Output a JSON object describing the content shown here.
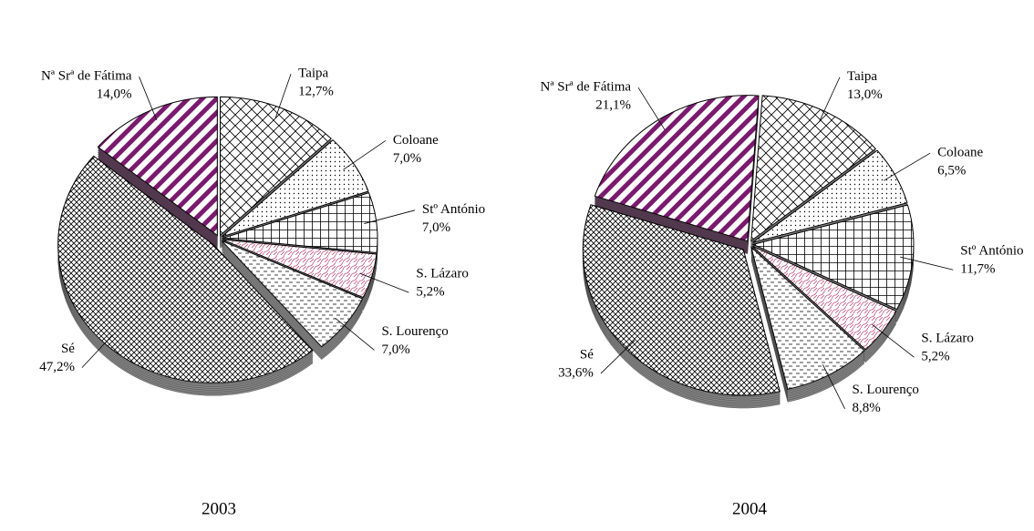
{
  "chart_data": [
    {
      "type": "pie",
      "title": "2003",
      "categories": [
        "Taipa",
        "Coloane",
        "Stº António",
        "S. Lázaro",
        "S. Lourenço",
        "Sé",
        "Nª Srª de Fátima"
      ],
      "values": [
        12.7,
        7.0,
        7.0,
        5.2,
        7.0,
        47.2,
        14.0
      ],
      "value_labels": [
        "12,7%",
        "7,0%",
        "7,0%",
        "5,2%",
        "7,0%",
        "47,2%",
        "14,0%"
      ],
      "colors": [
        "#000000",
        "#000000",
        "#000000",
        "#c0507a",
        "#000000",
        "#000000",
        "#7a1a6e"
      ]
    },
    {
      "type": "pie",
      "title": "2004",
      "categories": [
        "Taipa",
        "Coloane",
        "Stº António",
        "S. Lázaro",
        "S. Lourenço",
        "Sé",
        "Nª Srª de Fátima"
      ],
      "values": [
        13.0,
        6.5,
        11.7,
        5.2,
        8.8,
        33.6,
        21.1
      ],
      "value_labels": [
        "13,0%",
        "6,5%",
        "11,7%",
        "5,2%",
        "8,8%",
        "33,6%",
        "21,1%"
      ],
      "colors": [
        "#000000",
        "#000000",
        "#000000",
        "#c0507a",
        "#000000",
        "#000000",
        "#7a1a6e"
      ]
    }
  ]
}
